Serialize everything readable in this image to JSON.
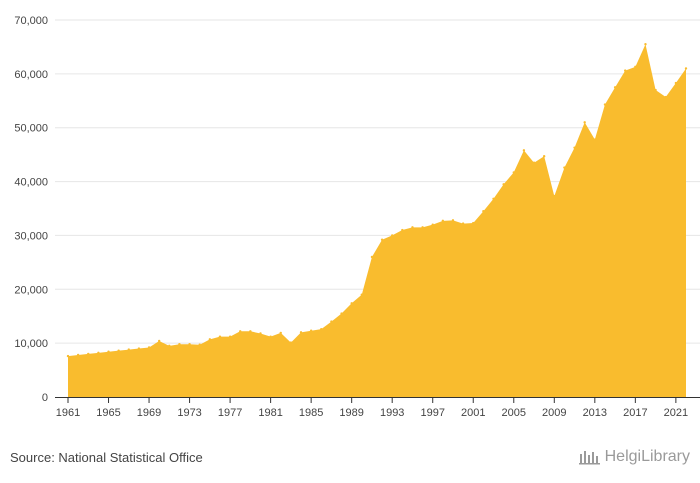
{
  "colors": {
    "area": "#F9BC2E",
    "grid": "#e6e6e6",
    "axis": "#333333",
    "text": "#444444",
    "logo": "#9a9a9a"
  },
  "source_text": "Source: National Statistical Office",
  "logo_text": "HelgiLibrary",
  "chart_data": {
    "type": "area",
    "title": "",
    "xlabel": "",
    "ylabel": "",
    "ylim": [
      0,
      70000
    ],
    "xlim": [
      1961,
      2022
    ],
    "grid": true,
    "y_ticks": [
      0,
      10000,
      20000,
      30000,
      40000,
      50000,
      60000,
      70000
    ],
    "y_tick_labels": [
      "0",
      "10,000",
      "20,000",
      "30,000",
      "40,000",
      "50,000",
      "60,000",
      "70,000"
    ],
    "x_ticks": [
      1961,
      1965,
      1969,
      1973,
      1977,
      1981,
      1985,
      1989,
      1993,
      1997,
      2001,
      2005,
      2009,
      2013,
      2017,
      2021
    ],
    "x_tick_labels": [
      "1961",
      "1965",
      "1969",
      "1973",
      "1977",
      "1981",
      "1985",
      "1989",
      "1993",
      "1997",
      "2001",
      "2005",
      "2009",
      "2013",
      "2017",
      "2021"
    ],
    "x": [
      1961,
      1962,
      1963,
      1964,
      1965,
      1966,
      1967,
      1968,
      1969,
      1970,
      1971,
      1972,
      1973,
      1974,
      1975,
      1976,
      1977,
      1978,
      1979,
      1980,
      1981,
      1982,
      1983,
      1984,
      1985,
      1986,
      1987,
      1988,
      1989,
      1990,
      1991,
      1992,
      1993,
      1994,
      1995,
      1996,
      1997,
      1998,
      1999,
      2000,
      2001,
      2002,
      2003,
      2004,
      2005,
      2006,
      2007,
      2008,
      2009,
      2010,
      2011,
      2012,
      2013,
      2014,
      2015,
      2016,
      2017,
      2018,
      2019,
      2020,
      2021,
      2022
    ],
    "values": [
      7600,
      7800,
      8000,
      8200,
      8400,
      8600,
      8800,
      9000,
      9200,
      10400,
      9500,
      9800,
      9800,
      9700,
      10700,
      11200,
      11200,
      12200,
      12200,
      11800,
      11200,
      11900,
      10100,
      12000,
      12300,
      12600,
      14000,
      15500,
      17400,
      19000,
      26000,
      29200,
      30000,
      31000,
      31500,
      31500,
      32000,
      32700,
      32800,
      32200,
      32300,
      34500,
      36800,
      39500,
      41700,
      45800,
      43500,
      44700,
      37300,
      42600,
      46300,
      51000,
      47800,
      54300,
      57500,
      60600,
      61300,
      65500,
      57000,
      55700,
      58300,
      61000
    ]
  }
}
